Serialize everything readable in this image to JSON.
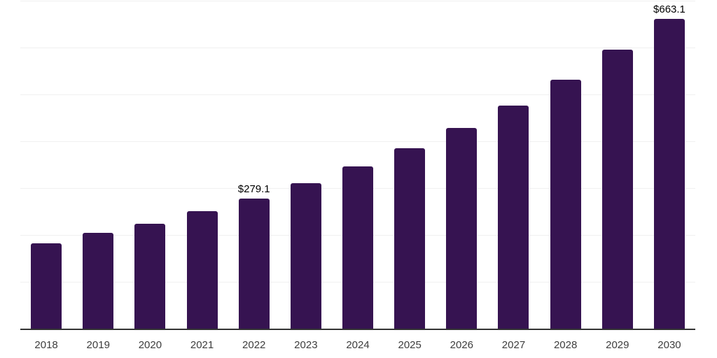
{
  "chart": {
    "bar_color": "#361351",
    "gridline_color": "#f0f0f0",
    "axis_color": "#333333",
    "tick_label_color": "#3d3d3d",
    "data_label_color": "#000000",
    "background_color": "#ffffff"
  },
  "chart_data": {
    "type": "bar",
    "title": "",
    "xlabel": "",
    "ylabel": "",
    "categories": [
      "2018",
      "2019",
      "2020",
      "2021",
      "2022",
      "2023",
      "2024",
      "2025",
      "2026",
      "2027",
      "2028",
      "2029",
      "2030"
    ],
    "values": [
      184,
      206,
      226,
      252,
      279.1,
      312,
      348,
      387,
      430,
      478,
      533,
      597,
      663.1
    ],
    "data_labels": [
      null,
      null,
      null,
      null,
      "$279.1",
      null,
      null,
      null,
      null,
      null,
      null,
      null,
      "$663.1"
    ],
    "ylim": [
      0,
      700
    ],
    "grid_interval": 100,
    "grid": true,
    "legend": false,
    "y_axis_labels_visible": false
  }
}
